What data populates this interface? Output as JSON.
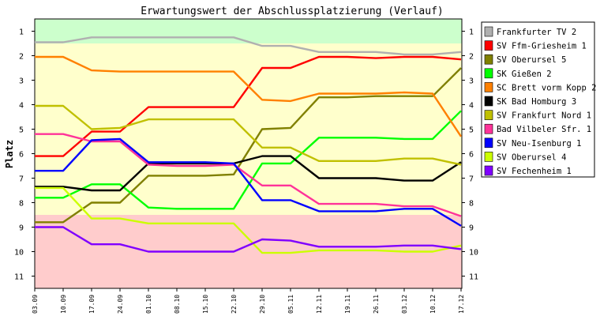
{
  "chart_data": {
    "type": "line",
    "title": "Erwartungswert der Abschlussplatzierung (Verlauf)",
    "ylabel": "Platz",
    "xlabel": "",
    "x": [
      "03.09",
      "10.09",
      "17.09",
      "24.09",
      "01.10",
      "08.10",
      "15.10",
      "22.10",
      "29.10",
      "05.11",
      "12.11",
      "19.11",
      "26.11",
      "03.12",
      "10.12",
      "17.12"
    ],
    "ylim": [
      1,
      11
    ],
    "y_inverted": true,
    "yticks": [
      1,
      2,
      3,
      4,
      5,
      6,
      7,
      8,
      9,
      10,
      11
    ],
    "grid": false,
    "legend_position": "right",
    "bands": [
      {
        "from": 0.5,
        "to": 1.5,
        "color": "#ccffcc"
      },
      {
        "from": 1.5,
        "to": 8.5,
        "color": "#ffffcc"
      },
      {
        "from": 8.5,
        "to": 11.5,
        "color": "#ffcccc"
      }
    ],
    "series": [
      {
        "name": "Frankfurter TV 2",
        "color": "#b0b0b0",
        "values": [
          1.45,
          1.45,
          1.25,
          1.25,
          1.25,
          1.25,
          1.25,
          1.25,
          1.6,
          1.6,
          1.85,
          1.85,
          1.85,
          1.95,
          1.95,
          1.85
        ]
      },
      {
        "name": "SV Ffm-Griesheim 1",
        "color": "#ff0000",
        "values": [
          6.1,
          6.1,
          5.1,
          5.1,
          4.1,
          4.1,
          4.1,
          4.1,
          2.5,
          2.5,
          2.05,
          2.05,
          2.1,
          2.05,
          2.05,
          2.15
        ]
      },
      {
        "name": "SV Oberursel 5",
        "color": "#808000",
        "values": [
          8.8,
          8.8,
          8.0,
          8.0,
          6.9,
          6.9,
          6.9,
          6.85,
          5.0,
          4.95,
          3.7,
          3.7,
          3.65,
          3.65,
          3.65,
          2.5
        ]
      },
      {
        "name": "SK Gießen 2",
        "color": "#00ff00",
        "values": [
          7.8,
          7.8,
          7.25,
          7.25,
          8.2,
          8.25,
          8.25,
          8.25,
          6.4,
          6.4,
          5.35,
          5.35,
          5.35,
          5.4,
          5.4,
          4.25
        ]
      },
      {
        "name": "SC Brett vorm Kopp 2",
        "color": "#ff8000",
        "values": [
          2.05,
          2.05,
          2.6,
          2.65,
          2.65,
          2.65,
          2.65,
          2.65,
          3.8,
          3.85,
          3.55,
          3.55,
          3.55,
          3.5,
          3.55,
          5.3
        ]
      },
      {
        "name": "SK Bad Homburg 3",
        "color": "#000000",
        "values": [
          7.35,
          7.35,
          7.5,
          7.5,
          6.4,
          6.4,
          6.4,
          6.4,
          6.1,
          6.1,
          7.0,
          7.0,
          7.0,
          7.1,
          7.1,
          6.35
        ]
      },
      {
        "name": "SV Frankfurt Nord 1",
        "color": "#c0c000",
        "values": [
          4.05,
          4.05,
          5.0,
          4.95,
          4.6,
          4.6,
          4.6,
          4.6,
          5.75,
          5.75,
          6.3,
          6.3,
          6.3,
          6.2,
          6.2,
          6.45
        ]
      },
      {
        "name": "Bad Vilbeler Sfr. 1",
        "color": "#ff3399",
        "values": [
          5.2,
          5.2,
          5.5,
          5.5,
          6.45,
          6.5,
          6.5,
          6.45,
          7.3,
          7.3,
          8.05,
          8.05,
          8.05,
          8.15,
          8.15,
          8.55
        ]
      },
      {
        "name": "SV Neu-Isenburg 1",
        "color": "#0000ff",
        "values": [
          6.7,
          6.7,
          5.45,
          5.4,
          6.35,
          6.35,
          6.35,
          6.4,
          7.9,
          7.9,
          8.35,
          8.35,
          8.35,
          8.25,
          8.25,
          8.95
        ]
      },
      {
        "name": "SV Oberursel 4",
        "color": "#ccff00",
        "values": [
          7.4,
          7.4,
          8.65,
          8.65,
          8.85,
          8.85,
          8.85,
          8.85,
          10.05,
          10.05,
          9.95,
          9.95,
          9.95,
          10.0,
          10.0,
          9.75
        ]
      },
      {
        "name": "SV Fechenheim 1",
        "color": "#8000ff",
        "values": [
          9.0,
          9.0,
          9.7,
          9.7,
          10.0,
          10.0,
          10.0,
          10.0,
          9.5,
          9.55,
          9.8,
          9.8,
          9.8,
          9.75,
          9.75,
          9.9
        ]
      }
    ]
  }
}
